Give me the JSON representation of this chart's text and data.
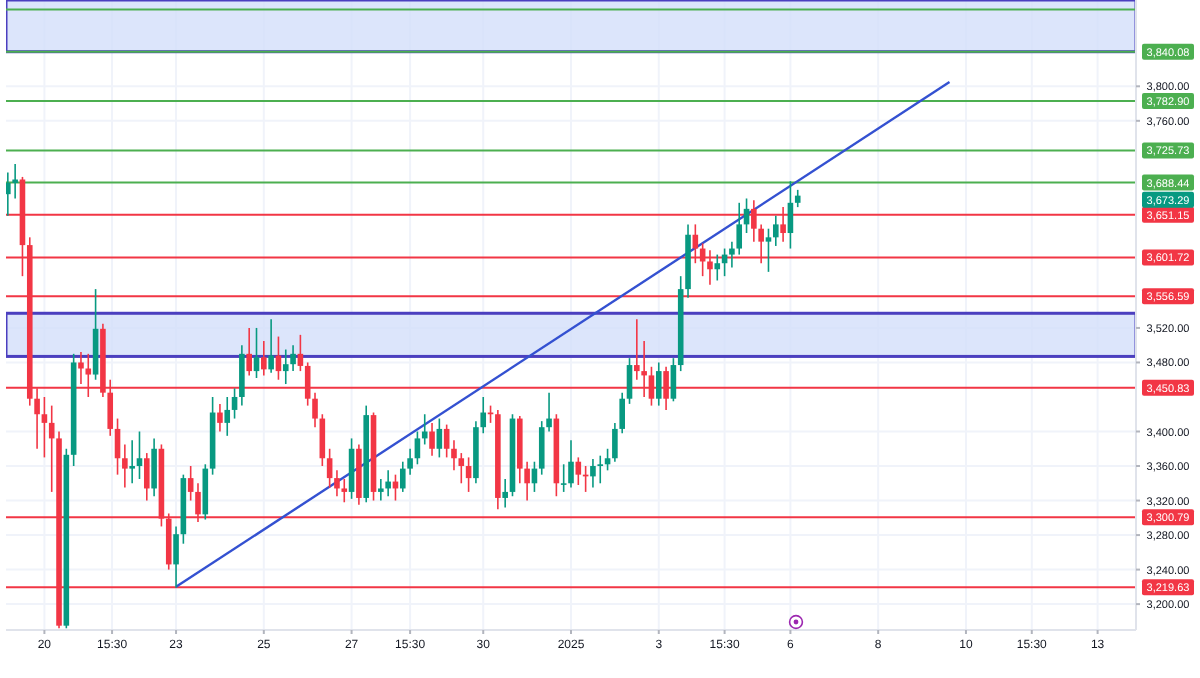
{
  "chart_data": {
    "type": "candlestick",
    "x": [
      "2024-12-19T04:00",
      "2024-12-19T08:00",
      "2024-12-19T12:00",
      "2024-12-19T16:00",
      "2024-12-19T20:00",
      "2024-12-20T00:00",
      "2024-12-20T04:00",
      "2024-12-20T08:00",
      "2024-12-20T12:00",
      "2024-12-20T16:00",
      "2024-12-20T20:00",
      "2024-12-21T00:00",
      "2024-12-21T04:00",
      "2024-12-21T08:00",
      "2024-12-21T12:00",
      "2024-12-21T16:00",
      "2024-12-21T20:00",
      "2024-12-22T00:00",
      "2024-12-22T04:00",
      "2024-12-22T08:00",
      "2024-12-22T12:00",
      "2024-12-22T16:00",
      "2024-12-22T20:00",
      "2024-12-23T00:00",
      "2024-12-23T04:00",
      "2024-12-23T08:00",
      "2024-12-23T12:00",
      "2024-12-23T16:00",
      "2024-12-23T20:00",
      "2024-12-24T00:00",
      "2024-12-24T04:00",
      "2024-12-24T08:00",
      "2024-12-24T12:00",
      "2024-12-24T16:00",
      "2024-12-24T20:00",
      "2024-12-25T00:00",
      "2024-12-25T04:00",
      "2024-12-25T08:00",
      "2024-12-25T12:00",
      "2024-12-25T16:00",
      "2024-12-25T20:00",
      "2024-12-26T00:00",
      "2024-12-26T04:00",
      "2024-12-26T08:00",
      "2024-12-26T12:00",
      "2024-12-26T16:00",
      "2024-12-26T20:00",
      "2024-12-27T00:00",
      "2024-12-27T04:00",
      "2024-12-27T08:00",
      "2024-12-27T12:00",
      "2024-12-27T16:00",
      "2024-12-27T20:00",
      "2024-12-28T00:00",
      "2024-12-28T04:00",
      "2024-12-28T08:00",
      "2024-12-28T12:00",
      "2024-12-28T16:00",
      "2024-12-28T20:00",
      "2024-12-29T00:00",
      "2024-12-29T04:00",
      "2024-12-29T08:00",
      "2024-12-29T12:00",
      "2024-12-29T16:00",
      "2024-12-29T20:00",
      "2024-12-30T00:00",
      "2024-12-30T04:00",
      "2024-12-30T08:00",
      "2024-12-30T12:00",
      "2024-12-30T16:00",
      "2024-12-30T20:00",
      "2024-12-31T00:00",
      "2024-12-31T04:00",
      "2024-12-31T08:00",
      "2024-12-31T12:00",
      "2024-12-31T16:00",
      "2024-12-31T20:00",
      "2025-01-01T00:00",
      "2025-01-01T04:00",
      "2025-01-01T08:00",
      "2025-01-01T12:00",
      "2025-01-01T16:00",
      "2025-01-01T20:00",
      "2025-01-02T00:00",
      "2025-01-02T04:00",
      "2025-01-02T08:00",
      "2025-01-02T12:00",
      "2025-01-02T16:00",
      "2025-01-02T20:00",
      "2025-01-03T00:00",
      "2025-01-03T04:00",
      "2025-01-03T08:00",
      "2025-01-03T12:00",
      "2025-01-03T16:00",
      "2025-01-03T20:00",
      "2025-01-04T00:00",
      "2025-01-04T04:00",
      "2025-01-04T08:00",
      "2025-01-04T12:00",
      "2025-01-04T16:00",
      "2025-01-04T20:00",
      "2025-01-05T00:00",
      "2025-01-05T04:00",
      "2025-01-05T08:00",
      "2025-01-05T12:00",
      "2025-01-05T16:00",
      "2025-01-05T20:00",
      "2025-01-06T00:00",
      "2025-01-06T04:00"
    ],
    "ohlc": [
      [
        3675,
        3700,
        3650,
        3688
      ],
      [
        3688,
        3710,
        3670,
        3692
      ],
      [
        3692,
        3695,
        3580,
        3616
      ],
      [
        3616,
        3625,
        3430,
        3438
      ],
      [
        3438,
        3450,
        3380,
        3420
      ],
      [
        3420,
        3440,
        3370,
        3410
      ],
      [
        3410,
        3430,
        3330,
        3392
      ],
      [
        3392,
        3400,
        3172,
        3175
      ],
      [
        3175,
        3380,
        3172,
        3373
      ],
      [
        3373,
        3490,
        3360,
        3480
      ],
      [
        3480,
        3492,
        3455,
        3473
      ],
      [
        3473,
        3490,
        3440,
        3466
      ],
      [
        3466,
        3565,
        3460,
        3519
      ],
      [
        3519,
        3525,
        3440,
        3445
      ],
      [
        3445,
        3460,
        3395,
        3403
      ],
      [
        3403,
        3415,
        3350,
        3369
      ],
      [
        3369,
        3385,
        3335,
        3357
      ],
      [
        3357,
        3390,
        3340,
        3360
      ],
      [
        3360,
        3400,
        3345,
        3369
      ],
      [
        3369,
        3375,
        3320,
        3334
      ],
      [
        3334,
        3392,
        3325,
        3380
      ],
      [
        3380,
        3385,
        3290,
        3299
      ],
      [
        3299,
        3305,
        3240,
        3246
      ],
      [
        3246,
        3290,
        3219,
        3281
      ],
      [
        3281,
        3350,
        3270,
        3346
      ],
      [
        3346,
        3360,
        3320,
        3330
      ],
      [
        3330,
        3340,
        3295,
        3304
      ],
      [
        3304,
        3362,
        3298,
        3357
      ],
      [
        3357,
        3440,
        3350,
        3422
      ],
      [
        3422,
        3432,
        3400,
        3410
      ],
      [
        3410,
        3440,
        3395,
        3425
      ],
      [
        3425,
        3450,
        3415,
        3440
      ],
      [
        3440,
        3500,
        3430,
        3490
      ],
      [
        3490,
        3520,
        3465,
        3470
      ],
      [
        3470,
        3520,
        3462,
        3486
      ],
      [
        3486,
        3505,
        3465,
        3472
      ],
      [
        3472,
        3530,
        3468,
        3488
      ],
      [
        3488,
        3510,
        3460,
        3470
      ],
      [
        3470,
        3495,
        3455,
        3478
      ],
      [
        3478,
        3500,
        3470,
        3490
      ],
      [
        3490,
        3512,
        3470,
        3476
      ],
      [
        3476,
        3480,
        3430,
        3438
      ],
      [
        3438,
        3445,
        3405,
        3415
      ],
      [
        3415,
        3420,
        3360,
        3369
      ],
      [
        3369,
        3380,
        3335,
        3346
      ],
      [
        3346,
        3355,
        3325,
        3334
      ],
      [
        3334,
        3345,
        3318,
        3330
      ],
      [
        3330,
        3392,
        3322,
        3380
      ],
      [
        3380,
        3385,
        3315,
        3323
      ],
      [
        3323,
        3430,
        3318,
        3419
      ],
      [
        3419,
        3422,
        3320,
        3330
      ],
      [
        3330,
        3345,
        3320,
        3334
      ],
      [
        3334,
        3355,
        3325,
        3342
      ],
      [
        3342,
        3350,
        3320,
        3334
      ],
      [
        3334,
        3365,
        3330,
        3357
      ],
      [
        3357,
        3380,
        3350,
        3369
      ],
      [
        3369,
        3400,
        3362,
        3392
      ],
      [
        3392,
        3420,
        3385,
        3400
      ],
      [
        3400,
        3410,
        3372,
        3380
      ],
      [
        3380,
        3415,
        3370,
        3403
      ],
      [
        3403,
        3408,
        3370,
        3380
      ],
      [
        3380,
        3390,
        3355,
        3369
      ],
      [
        3369,
        3375,
        3340,
        3360
      ],
      [
        3360,
        3370,
        3330,
        3346
      ],
      [
        3346,
        3412,
        3340,
        3405
      ],
      [
        3405,
        3440,
        3398,
        3422
      ],
      [
        3422,
        3430,
        3410,
        3420
      ],
      [
        3420,
        3425,
        3310,
        3323
      ],
      [
        3323,
        3345,
        3312,
        3330
      ],
      [
        3330,
        3420,
        3325,
        3415
      ],
      [
        3415,
        3418,
        3340,
        3357
      ],
      [
        3357,
        3365,
        3320,
        3340
      ],
      [
        3340,
        3365,
        3330,
        3357
      ],
      [
        3357,
        3412,
        3350,
        3405
      ],
      [
        3405,
        3445,
        3400,
        3415
      ],
      [
        3415,
        3420,
        3325,
        3340
      ],
      [
        3340,
        3362,
        3330,
        3340
      ],
      [
        3340,
        3390,
        3335,
        3365
      ],
      [
        3365,
        3370,
        3338,
        3350
      ],
      [
        3350,
        3360,
        3330,
        3348
      ],
      [
        3348,
        3368,
        3335,
        3360
      ],
      [
        3360,
        3372,
        3340,
        3362
      ],
      [
        3362,
        3380,
        3355,
        3369
      ],
      [
        3369,
        3410,
        3365,
        3403
      ],
      [
        3403,
        3445,
        3398,
        3438
      ],
      [
        3438,
        3485,
        3432,
        3477
      ],
      [
        3477,
        3530,
        3460,
        3470
      ],
      [
        3470,
        3505,
        3440,
        3465
      ],
      [
        3465,
        3475,
        3430,
        3438
      ],
      [
        3438,
        3480,
        3430,
        3470
      ],
      [
        3470,
        3475,
        3425,
        3438
      ],
      [
        3438,
        3485,
        3435,
        3477
      ],
      [
        3477,
        3580,
        3470,
        3565
      ],
      [
        3565,
        3640,
        3555,
        3628
      ],
      [
        3628,
        3640,
        3595,
        3612
      ],
      [
        3612,
        3618,
        3580,
        3597
      ],
      [
        3597,
        3610,
        3570,
        3588
      ],
      [
        3588,
        3605,
        3575,
        3595
      ],
      [
        3595,
        3612,
        3580,
        3605
      ],
      [
        3605,
        3620,
        3590,
        3612
      ],
      [
        3612,
        3665,
        3605,
        3640
      ],
      [
        3640,
        3670,
        3630,
        3658
      ],
      [
        3658,
        3668,
        3620,
        3635
      ],
      [
        3635,
        3640,
        3595,
        3620
      ],
      [
        3620,
        3635,
        3585,
        3625
      ],
      [
        3625,
        3650,
        3615,
        3640
      ],
      [
        3640,
        3660,
        3620,
        3630
      ],
      [
        3630,
        3690,
        3612,
        3665
      ],
      [
        3665,
        3680,
        3660,
        3673.29
      ]
    ],
    "series": [
      {
        "type": "line",
        "x": [
          "2024-12-23T00:00",
          "2025-01-09T15:00"
        ],
        "values": [
          3220,
          3805
        ],
        "color": "#3451d1"
      }
    ],
    "xlim": [
      "2024-12-19T03:00",
      "2025-01-13T21:00"
    ],
    "xticks": [
      {
        "value": "2024-12-20T00:00",
        "label": "20"
      },
      {
        "value": "2024-12-21T13:00",
        "label": "15:30"
      },
      {
        "value": "2024-12-23T00:00",
        "label": "23"
      },
      {
        "value": "2024-12-25T00:00",
        "label": "25"
      },
      {
        "value": "2024-12-27T00:00",
        "label": "27"
      },
      {
        "value": "2024-12-28T08:00",
        "label": "15:30"
      },
      {
        "value": "2024-12-30T00:00",
        "label": "30"
      },
      {
        "value": "2025-01-01T00:00",
        "label": "2025"
      },
      {
        "value": "2025-01-03T00:00",
        "label": "3"
      },
      {
        "value": "2025-01-04T12:00",
        "label": "15:30"
      },
      {
        "value": "2025-01-06T00:00",
        "label": "6"
      },
      {
        "value": "2025-01-08T00:00",
        "label": "8"
      },
      {
        "value": "2025-01-10T00:00",
        "label": "10"
      },
      {
        "value": "2025-01-11T12:00",
        "label": "15:30"
      },
      {
        "value": "2025-01-13T00:00",
        "label": "13"
      }
    ],
    "ylim": [
      3170,
      3900
    ],
    "yticks": [
      {
        "value": 3200,
        "label": "3,200.00"
      },
      {
        "value": 3240,
        "label": "3,240.00"
      },
      {
        "value": 3280,
        "label": "3,280.00"
      },
      {
        "value": 3320,
        "label": "3,320.00"
      },
      {
        "value": 3360,
        "label": "3,360.00"
      },
      {
        "value": 3400,
        "label": "3,400.00"
      },
      {
        "value": 3480,
        "label": "3,480.00"
      },
      {
        "value": 3520,
        "label": "3,520.00"
      },
      {
        "value": 3760,
        "label": "3,760.00"
      },
      {
        "value": 3800,
        "label": "3,800.00"
      }
    ],
    "grid": true,
    "bands": [
      {
        "axis": "y",
        "from": 3840.08,
        "to": 3900,
        "color": "#d3defa"
      },
      {
        "axis": "y",
        "from": 3487,
        "to": 3537,
        "color": "#d3defa"
      }
    ],
    "ref_lines": [
      {
        "axis": "y",
        "value": 3889,
        "color": "#4caf50"
      },
      {
        "axis": "y",
        "value": 3840.08,
        "label": "3,840.08",
        "color": "#4caf50"
      },
      {
        "axis": "y",
        "value": 3782.9,
        "label": "3,782.90",
        "color": "#4caf50"
      },
      {
        "axis": "y",
        "value": 3725.73,
        "label": "3,725.73",
        "color": "#4caf50"
      },
      {
        "axis": "y",
        "value": 3688.44,
        "label": "3,688.44",
        "color": "#4caf50"
      },
      {
        "axis": "y",
        "value": 3651.15,
        "label": "3,651.15",
        "color": "#f23645"
      },
      {
        "axis": "y",
        "value": 3601.72,
        "label": "3,601.72",
        "color": "#f23645"
      },
      {
        "axis": "y",
        "value": 3556.59,
        "label": "3,556.59",
        "color": "#f23645"
      },
      {
        "axis": "y",
        "value": 3450.83,
        "label": "3,450.83",
        "color": "#f23645"
      },
      {
        "axis": "y",
        "value": 3300.79,
        "label": "3,300.79",
        "color": "#f23645"
      },
      {
        "axis": "y",
        "value": 3219.63,
        "label": "3,219.63",
        "color": "#f23645"
      }
    ],
    "annotations": [
      "3,673.29"
    ]
  }
}
